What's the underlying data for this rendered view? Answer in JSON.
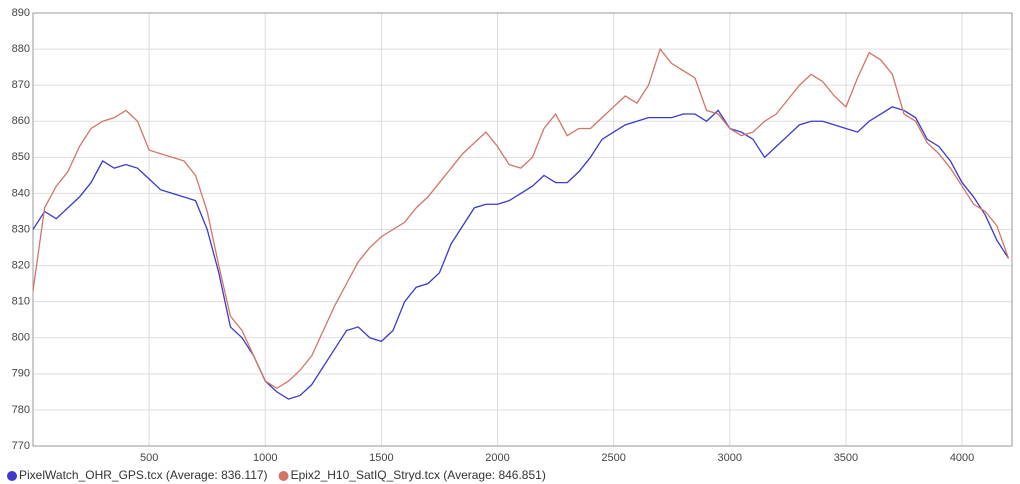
{
  "chart_data": {
    "type": "line",
    "x": [
      0,
      50,
      100,
      150,
      200,
      250,
      300,
      350,
      400,
      450,
      500,
      550,
      600,
      650,
      700,
      750,
      800,
      850,
      900,
      950,
      1000,
      1050,
      1100,
      1150,
      1200,
      1250,
      1300,
      1350,
      1400,
      1450,
      1500,
      1550,
      1600,
      1650,
      1700,
      1750,
      1800,
      1850,
      1900,
      1950,
      2000,
      2050,
      2100,
      2150,
      2200,
      2250,
      2300,
      2350,
      2400,
      2450,
      2500,
      2550,
      2600,
      2650,
      2700,
      2750,
      2800,
      2850,
      2900,
      2950,
      3000,
      3050,
      3100,
      3150,
      3200,
      3250,
      3300,
      3350,
      3400,
      3450,
      3500,
      3550,
      3600,
      3650,
      3700,
      3750,
      3800,
      3850,
      3900,
      3950,
      4000,
      4050,
      4100,
      4150,
      4200
    ],
    "series": [
      {
        "name": "PixelWatch_OHR_GPS.tcx (Average: 836.117)",
        "color": "#3a3acc",
        "values": [
          830,
          835,
          833,
          836,
          839,
          843,
          849,
          847,
          848,
          847,
          844,
          841,
          840,
          839,
          838,
          830,
          818,
          803,
          800,
          795,
          788,
          785,
          783,
          784,
          787,
          792,
          797,
          802,
          803,
          800,
          799,
          802,
          810,
          814,
          815,
          818,
          826,
          831,
          836,
          837,
          837,
          838,
          840,
          842,
          845,
          843,
          843,
          846,
          850,
          855,
          857,
          859,
          860,
          861,
          861,
          861,
          862,
          862,
          860,
          863,
          858,
          857,
          855,
          850,
          853,
          856,
          859,
          860,
          860,
          859,
          858,
          857,
          860,
          862,
          864,
          863,
          861,
          855,
          853,
          849,
          843,
          839,
          834,
          827,
          822
        ]
      },
      {
        "name": "Epix2_H10_SatIQ_Stryd.tcx (Average: 846.851)",
        "color": "#d47467",
        "values": [
          813,
          836,
          842,
          846,
          853,
          858,
          860,
          861,
          863,
          860,
          852,
          851,
          850,
          849,
          845,
          835,
          820,
          806,
          802,
          795,
          788,
          786,
          788,
          791,
          795,
          802,
          809,
          815,
          821,
          825,
          828,
          830,
          832,
          836,
          839,
          843,
          847,
          851,
          854,
          857,
          853,
          848,
          847,
          850,
          858,
          862,
          856,
          858,
          858,
          861,
          864,
          867,
          865,
          870,
          880,
          876,
          874,
          872,
          863,
          862,
          858,
          856,
          857,
          860,
          862,
          866,
          870,
          873,
          871,
          867,
          864,
          872,
          879,
          877,
          873,
          862,
          860,
          854,
          851,
          847,
          842,
          837,
          835,
          831,
          822
        ]
      }
    ],
    "xlim": [
      0,
      4215
    ],
    "xticks": [
      500,
      1000,
      1500,
      2000,
      2500,
      3000,
      3500,
      4000
    ],
    "ylim": [
      770,
      890
    ],
    "yticks": [
      770,
      780,
      790,
      800,
      810,
      820,
      830,
      840,
      850,
      860,
      870,
      880,
      890
    ],
    "grid": true,
    "legend": "bottom-left"
  }
}
